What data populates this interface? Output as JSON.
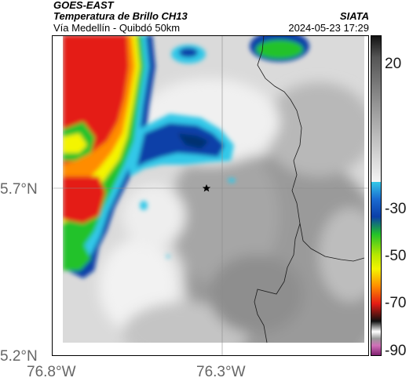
{
  "header": {
    "satellite": "GOES-EAST",
    "product": "Temperatura de Brillo CH13",
    "route": "Vía Medellín - Quibdó 50km",
    "agency": "SIATA",
    "datetime": "2024-05-23 17:29"
  },
  "axes": {
    "y_ticks": [
      "5.7°N",
      "5.2°N"
    ],
    "x_ticks": [
      "76.8°W",
      "76.3°W"
    ]
  },
  "colorbar": {
    "ticks": [
      "20",
      "-30",
      "-50",
      "-70",
      "-90"
    ],
    "colors": {
      "warm_gray_light": "#f2f2f2",
      "warm_gray_dark": "#707070",
      "cyan": "#33c8e8",
      "blue": "#0a3fa8",
      "green": "#22c22a",
      "yellow": "#f4f400",
      "orange": "#ff8c00",
      "red": "#e41b14",
      "black": "#101010",
      "magenta": "#b0308e"
    }
  },
  "map": {
    "marker": "star-icon",
    "background": "#d9d9d9"
  }
}
